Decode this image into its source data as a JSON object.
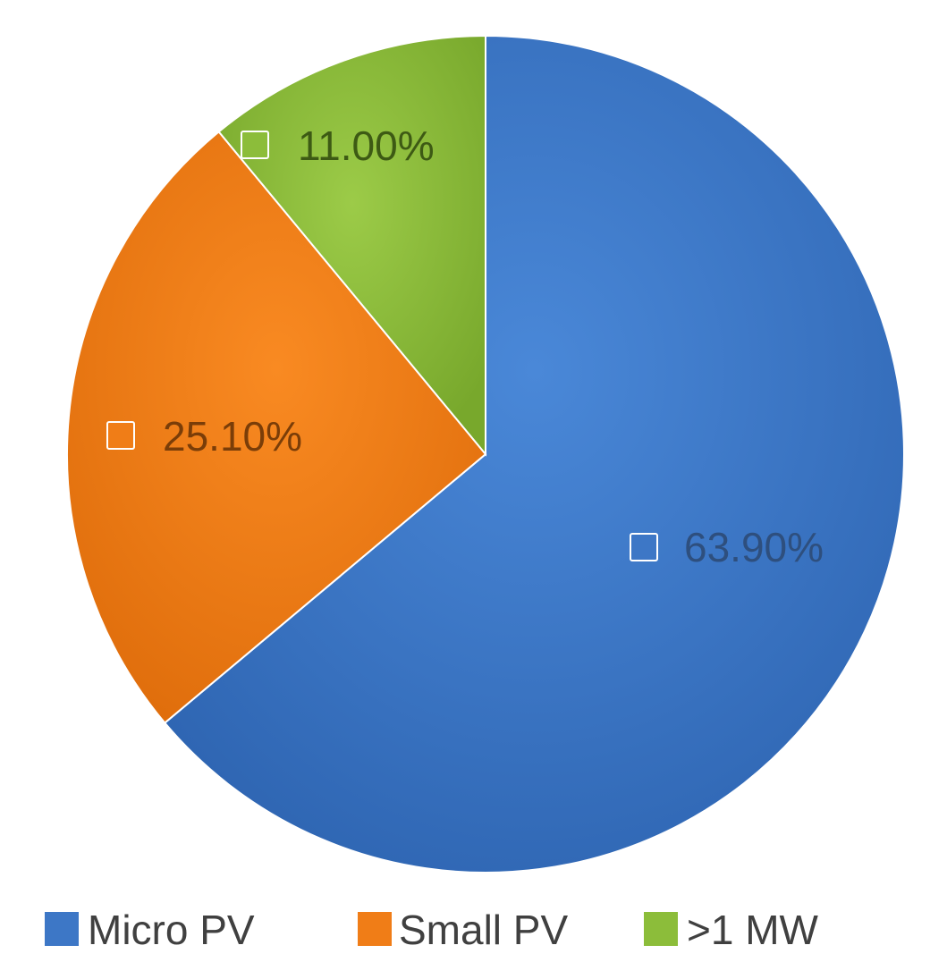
{
  "chart_data": {
    "type": "pie",
    "categories": [
      "Micro PV",
      "Small PV",
      ">1 MW"
    ],
    "values": [
      63.9,
      25.1,
      11.0
    ],
    "data_labels": [
      "63.90%",
      "25.10%",
      "11.00%"
    ],
    "colors": [
      "#3d77c6",
      "#f07d17",
      "#8cbd3a"
    ],
    "label_colors": [
      "#2e4f7e",
      "#7a3d08",
      "#3d5a14"
    ],
    "start_angle_deg": 0,
    "direction": "clockwise",
    "legend": {
      "position": "bottom",
      "entries": [
        "Micro PV",
        "Small PV",
        ">1 MW"
      ]
    },
    "title": "",
    "show_grid": false
  }
}
